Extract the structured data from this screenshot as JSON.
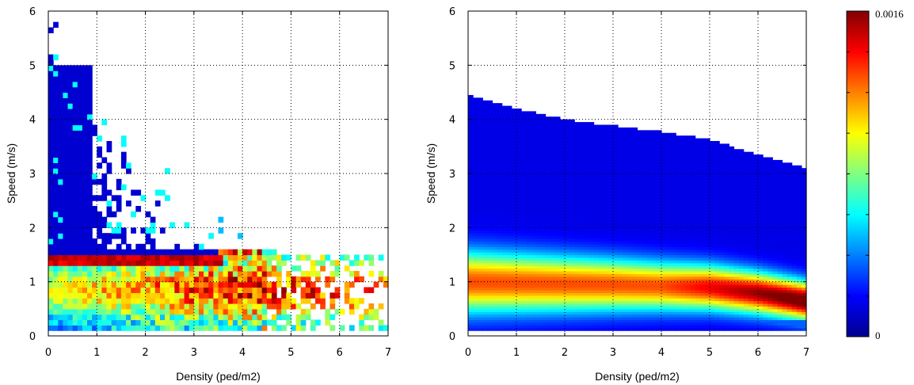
{
  "chart_data": [
    {
      "type": "heatmap",
      "xlabel": "Density (ped/m2)",
      "ylabel": "Speed (m/s)",
      "xlim": [
        0,
        7
      ],
      "ylim": [
        0,
        6
      ],
      "xticks": [
        "0",
        "1",
        "2",
        "3",
        "4",
        "5",
        "6",
        "7"
      ],
      "yticks": [
        "0",
        "1",
        "2",
        "3",
        "4",
        "5",
        "6"
      ],
      "grid": "dotted",
      "data_summary": "empirical joint distribution: dense low-speed band near 0.1-1.5 m/s, sharp peak ridge at ~1.4 m/s for low densities, scattered high values at densities 4-7, sparse cells up to 5.8 m/s at low density"
    },
    {
      "type": "heatmap",
      "xlabel": "Density (ped/m2)",
      "ylabel": "Speed (m/s)",
      "xlim": [
        0,
        7
      ],
      "ylim": [
        0,
        6
      ],
      "xticks": [
        "0",
        "1",
        "2",
        "3",
        "4",
        "5",
        "6",
        "7"
      ],
      "yticks": [
        "0",
        "1",
        "2",
        "3",
        "4",
        "5",
        "6"
      ],
      "grid": "dotted",
      "upper_boundary": [
        {
          "x": 0,
          "y": 4.45
        },
        {
          "x": 1,
          "y": 4.2
        },
        {
          "x": 2,
          "y": 4.0
        },
        {
          "x": 3,
          "y": 3.88
        },
        {
          "x": 4,
          "y": 3.78
        },
        {
          "x": 5,
          "y": 3.62
        },
        {
          "x": 6,
          "y": 3.35
        },
        {
          "x": 7,
          "y": 3.1
        }
      ],
      "peak_speed": [
        {
          "x": 0,
          "y": 1.0
        },
        {
          "x": 3,
          "y": 0.95
        },
        {
          "x": 5,
          "y": 0.9
        },
        {
          "x": 6,
          "y": 0.8
        },
        {
          "x": 7,
          "y": 0.65
        }
      ]
    }
  ],
  "colorbar": {
    "colormap": "jet",
    "min_label": "0",
    "max_label": "0.0016",
    "min": 0,
    "max": 0.0016
  }
}
